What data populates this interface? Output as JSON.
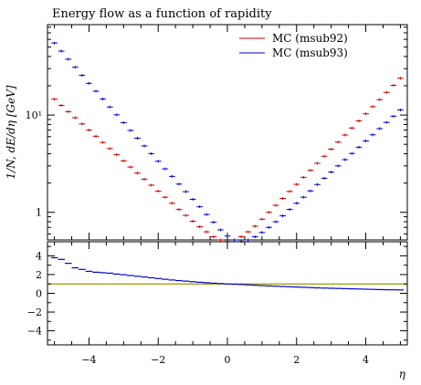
{
  "chart_data": [
    {
      "type": "line",
      "title": "Energy flow as a function of rapidity",
      "xlabel": "",
      "ylabel": "1/N, dE/dη [GeV]",
      "yscale": "log",
      "xlim": [
        -5.2,
        5.2
      ],
      "ylim": [
        0.52,
        85
      ],
      "y_ticks": [
        {
          "value": 1,
          "label": "1"
        },
        {
          "value": 10,
          "label": "10¹"
        }
      ],
      "legend_position": "top-right",
      "x": [
        -5.0,
        -4.8,
        -4.6,
        -4.4,
        -4.2,
        -4.0,
        -3.8,
        -3.6,
        -3.4,
        -3.2,
        -3.0,
        -2.8,
        -2.6,
        -2.4,
        -2.2,
        -2.0,
        -1.8,
        -1.6,
        -1.4,
        -1.2,
        -1.0,
        -0.8,
        -0.6,
        -0.4,
        -0.2,
        0.0,
        0.2,
        0.4,
        0.6,
        0.8,
        1.0,
        1.2,
        1.4,
        1.6,
        1.8,
        2.0,
        2.2,
        2.4,
        2.6,
        2.8,
        3.0,
        3.2,
        3.4,
        3.6,
        3.8,
        4.0,
        4.2,
        4.4,
        4.6,
        4.8,
        5.0
      ],
      "series": [
        {
          "name": "MC (msub92)",
          "color": "#cc0000",
          "values": [
            14.55,
            12.56,
            10.85,
            9.38,
            8.1,
            7.0,
            6.05,
            5.23,
            4.52,
            3.91,
            3.38,
            2.92,
            2.53,
            2.19,
            1.9,
            1.65,
            1.43,
            1.24,
            1.07,
            0.93,
            0.81,
            0.71,
            0.63,
            0.56,
            0.52,
            0.5,
            0.52,
            0.56,
            0.63,
            0.72,
            0.85,
            1.0,
            1.18,
            1.39,
            1.64,
            1.94,
            2.29,
            2.7,
            3.19,
            3.77,
            4.46,
            5.27,
            6.23,
            7.36,
            8.71,
            10.3,
            12.2,
            14.4,
            17.1,
            20.2,
            23.9
          ]
        },
        {
          "name": "MC (msub93)",
          "color": "#0000cc",
          "values": [
            55.0,
            45.4,
            37.5,
            31.0,
            25.6,
            21.2,
            17.6,
            14.6,
            12.1,
            10.05,
            8.35,
            6.94,
            5.78,
            4.81,
            4.01,
            3.35,
            2.8,
            2.34,
            1.95,
            1.63,
            1.36,
            1.14,
            0.95,
            0.79,
            0.66,
            0.57,
            0.52,
            0.5,
            0.52,
            0.56,
            0.62,
            0.7,
            0.8,
            0.92,
            1.07,
            1.24,
            1.43,
            1.66,
            1.93,
            2.24,
            2.59,
            3.0,
            3.48,
            4.03,
            4.67,
            5.41,
            6.26,
            7.25,
            8.4,
            9.73,
            11.27
          ]
        }
      ]
    },
    {
      "type": "line",
      "title": "",
      "xlabel": "η",
      "ylabel": "",
      "xlim": [
        -5.2,
        5.2
      ],
      "ylim": [
        -5.5,
        5.5
      ],
      "x_ticks": [
        -4,
        -2,
        0,
        2,
        4
      ],
      "y_ticks": [
        -4,
        -2,
        0,
        2,
        4
      ],
      "reference_line": {
        "value": 1,
        "color": "#999900"
      },
      "x": [
        -5.0,
        -4.8,
        -4.6,
        -4.4,
        -4.2,
        -4.0,
        -3.8,
        -3.6,
        -3.4,
        -3.2,
        -3.0,
        -2.8,
        -2.6,
        -2.4,
        -2.2,
        -2.0,
        -1.8,
        -1.6,
        -1.4,
        -1.2,
        -1.0,
        -0.8,
        -0.6,
        -0.4,
        -0.2,
        0.0,
        0.2,
        0.4,
        0.6,
        0.8,
        1.0,
        1.2,
        1.4,
        1.6,
        1.8,
        2.0,
        2.2,
        2.4,
        2.6,
        2.8,
        3.0,
        3.2,
        3.4,
        3.6,
        3.8,
        4.0,
        4.2,
        4.4,
        4.6,
        4.8,
        5.0
      ],
      "series": [
        {
          "color": "#0000cc",
          "values": [
            3.8,
            3.62,
            3.2,
            2.72,
            2.55,
            2.35,
            2.25,
            2.2,
            2.15,
            2.05,
            1.98,
            1.9,
            1.82,
            1.74,
            1.66,
            1.58,
            1.5,
            1.42,
            1.36,
            1.3,
            1.24,
            1.18,
            1.13,
            1.08,
            1.04,
            1.0,
            0.97,
            0.94,
            0.9,
            0.86,
            0.82,
            0.79,
            0.76,
            0.73,
            0.7,
            0.67,
            0.64,
            0.61,
            0.58,
            0.56,
            0.54,
            0.52,
            0.5,
            0.48,
            0.46,
            0.44,
            0.42,
            0.4,
            0.38,
            0.37,
            0.36
          ]
        }
      ]
    }
  ]
}
